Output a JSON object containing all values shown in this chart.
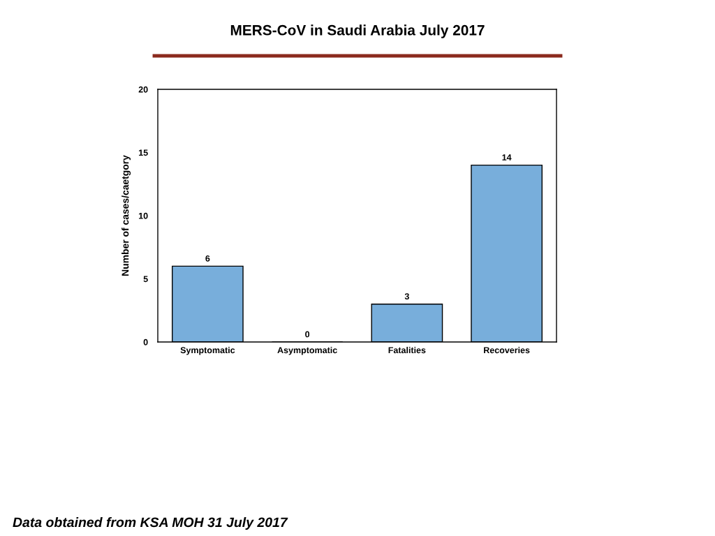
{
  "chart_data": {
    "type": "bar",
    "title": "MERS-CoV in Saudi Arabia July 2017",
    "ylabel": "Number of cases/caetgory",
    "categories": [
      "Symptomatic",
      "Asymptomatic",
      "Fatalities",
      "Recoveries"
    ],
    "values": [
      6,
      0,
      3,
      14
    ],
    "color": "#78aedb",
    "ylim": [
      0,
      20
    ],
    "yticks": [
      0,
      5,
      10,
      15,
      20
    ],
    "grid": false,
    "data_labels": true,
    "annotations": [
      "Data obtained from KSA MOH 31 July 2017"
    ]
  }
}
